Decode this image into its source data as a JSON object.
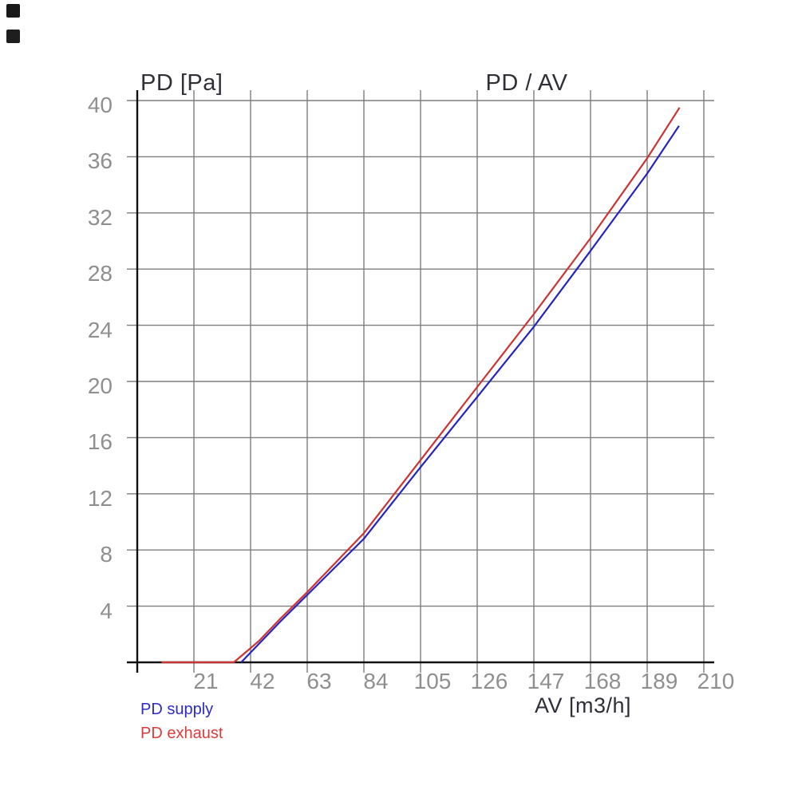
{
  "page": {
    "background": "#ffffff"
  },
  "decorations": {
    "corner_squares": [
      {
        "color": "#191919"
      },
      {
        "color": "#1e1e1e"
      }
    ]
  },
  "chart_data": {
    "type": "line",
    "title": "PD / AV",
    "y_axis_label": "PD [Pa]",
    "x_axis_label": "AV [m3/h]",
    "xlim": [
      0,
      210
    ],
    "ylim": [
      0,
      40
    ],
    "x_ticks": [
      21,
      42,
      63,
      84,
      105,
      126,
      147,
      168,
      189,
      210
    ],
    "y_ticks": [
      40,
      36,
      32,
      28,
      24,
      20,
      16,
      12,
      8,
      4
    ],
    "grid": true,
    "legend_position": "bottom-left",
    "legend": [
      {
        "label": "PD supply",
        "color": "#2a2ace"
      },
      {
        "label": "PD exhaust",
        "color": "#e03a3a"
      }
    ],
    "series": [
      {
        "name": "PD supply",
        "color": "#2424c4",
        "points": [
          [
            38.5,
            0
          ],
          [
            53,
            2.9
          ],
          [
            63,
            4.8
          ],
          [
            84,
            8.8
          ],
          [
            105,
            13.9
          ],
          [
            126,
            18.9
          ],
          [
            147,
            23.9
          ],
          [
            168,
            29.3
          ],
          [
            189,
            34.8
          ],
          [
            200.8,
            38.2
          ]
        ]
      },
      {
        "name": "PD exhaust",
        "color": "#cc3333",
        "points": [
          [
            9,
            0
          ],
          [
            35.8,
            0
          ],
          [
            45,
            1.5
          ],
          [
            53,
            3.1
          ],
          [
            63,
            5.0
          ],
          [
            84,
            9.2
          ],
          [
            105,
            14.4
          ],
          [
            126,
            19.6
          ],
          [
            147,
            24.8
          ],
          [
            168,
            30.2
          ],
          [
            189,
            35.9
          ],
          [
            201,
            39.5
          ]
        ]
      }
    ],
    "colors": {
      "grid": "#7d7d7d",
      "axis": "#111111",
      "tick_label": "#8f8f8f",
      "title_text": "#2f2f38"
    }
  }
}
